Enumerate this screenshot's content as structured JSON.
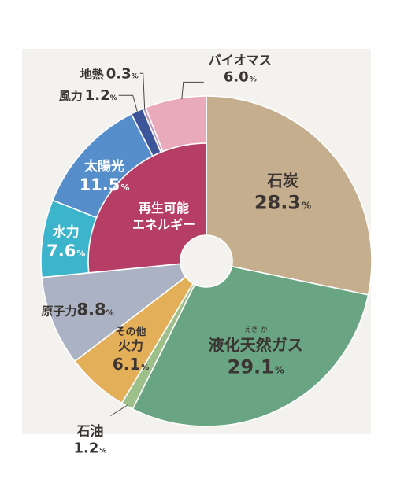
{
  "chart_data": {
    "type": "pie",
    "colors": {
      "石炭": "#c4ae8e",
      "液化天然ガス": "#69a483",
      "石油": "#9dbf8a",
      "その他火力": "#e3af59",
      "原子力": "#aab2c3",
      "水力": "#3cb4cc",
      "太陽光": "#558ecb",
      "風力": "#3d5699",
      "地熱": "#b693b9",
      "バイオマス": "#e9aabb",
      "再生可能エネルギー": "#b53d66"
    },
    "slices": [
      {
        "name": "石炭",
        "value": 28.3,
        "label": "28.3"
      },
      {
        "name": "液化天然ガス",
        "ruby": "えき か",
        "value": 29.1,
        "label": "29.1"
      },
      {
        "name": "石油",
        "value": 1.2,
        "label": "1.2"
      },
      {
        "name": "その他火力",
        "value": 6.1,
        "label": "6.1"
      },
      {
        "name": "原子力",
        "value": 8.8,
        "label": "8.8"
      },
      {
        "name": "水力",
        "value": 7.6,
        "label": "7.6"
      },
      {
        "name": "太陽光",
        "value": 11.5,
        "label": "11.5"
      },
      {
        "name": "風力",
        "value": 1.2,
        "label": "1.2"
      },
      {
        "name": "地熱",
        "value": 0.3,
        "label": "0.3"
      },
      {
        "name": "バイオマス",
        "value": 6.0,
        "label": "6.0"
      }
    ],
    "renewable_group": {
      "label_lines": [
        "再生可能",
        "エネルギー"
      ],
      "members": [
        "水力",
        "太陽光",
        "風力",
        "地熱",
        "バイオマス"
      ]
    },
    "unit": "%"
  }
}
